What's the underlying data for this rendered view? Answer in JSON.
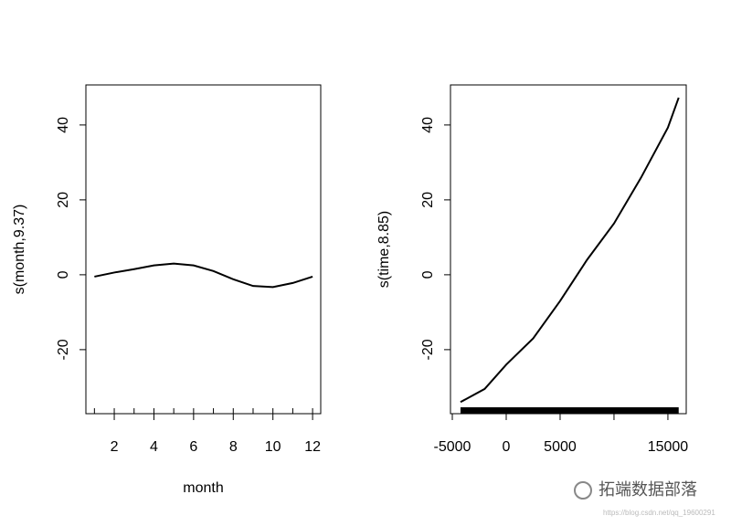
{
  "chart_data": [
    {
      "type": "line",
      "x_label": "month",
      "y_label": "s(month,9.37)",
      "x": [
        1,
        2,
        3,
        4,
        5,
        6,
        7,
        8,
        9,
        10,
        11,
        12
      ],
      "values": [
        -0.5,
        0.6,
        1.5,
        2.5,
        3,
        2.5,
        1,
        -1.2,
        -3,
        -3.3,
        -2.2,
        -0.5
      ],
      "color": "#000000",
      "rug": "ticks",
      "xlim": [
        0.57,
        12.41
      ],
      "xticks": [
        2,
        4,
        6,
        8,
        10,
        12
      ],
      "ylim": [
        -37.1,
        50.7
      ],
      "yticks": [
        -20,
        0,
        20,
        40
      ]
    },
    {
      "type": "line",
      "x_label": "time",
      "y_label": "s(time,8.85)",
      "x": [
        -4240,
        -2000,
        0,
        2500,
        5000,
        7500,
        10000,
        12500,
        15000,
        16000
      ],
      "values": [
        -34,
        -30.5,
        -24,
        -17,
        -7,
        4,
        13.7,
        25.9,
        39.3,
        47.3
      ],
      "color": "#000000",
      "rug": "band",
      "xlim": [
        -5170,
        16700
      ],
      "xticks": [
        -5000,
        0,
        5000,
        {
          "value": 10000,
          "label": null
        },
        15000
      ],
      "ylim": [
        -37.1,
        50.7
      ],
      "yticks": [
        -20,
        0,
        20,
        40
      ]
    }
  ],
  "watermark": {
    "text": "拓端数据部落",
    "url": "https://blog.csdn.net/qq_19600291"
  }
}
